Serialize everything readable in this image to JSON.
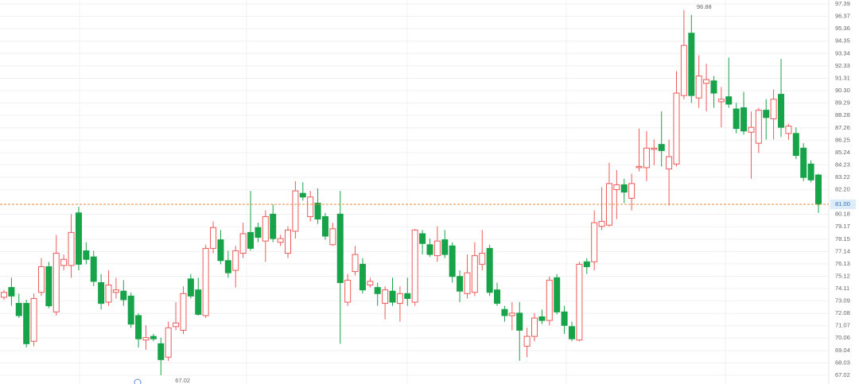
{
  "chart_data": {
    "type": "candlestick",
    "up_color": "#ee5a5a",
    "down_color": "#17a349",
    "grid": true,
    "ylim": [
      67.02,
      97.39
    ],
    "yticks": [
      97.39,
      96.37,
      95.36,
      94.35,
      93.34,
      92.33,
      91.31,
      {
        "value": 90.3,
        "label": "90.30"
      },
      89.29,
      88.28,
      87.26,
      86.25,
      85.24,
      84.23,
      83.22,
      {
        "value": 82.2,
        "label": "82.20"
      },
      80.18,
      79.17,
      78.15,
      77.14,
      76.13,
      75.12,
      74.11,
      73.09,
      72.08,
      71.07,
      70.06,
      69.04,
      68.03,
      67.02
    ],
    "last_price": {
      "value": 81,
      "label": "81.00"
    },
    "open": [
      73.4,
      74.2,
      72.9,
      72.9,
      69.8,
      73.8,
      75.9,
      72.2,
      76.0,
      76.0,
      80.3,
      77.2,
      76.7,
      74.6,
      73.0,
      73.8,
      73.9,
      73.5,
      71.9,
      69.9,
      70.2,
      69.6,
      68.5,
      71.0,
      70.7,
      74.9,
      74.0,
      71.9,
      77.4,
      78.1,
      76.4,
      75.6,
      77.0,
      78.7,
      79.1,
      78.0,
      80.2,
      77.9,
      77.0,
      78.8,
      81.9,
      80.0,
      81.1,
      80.0,
      77.7,
      80.2,
      73.0,
      75.5,
      76.1,
      74.4,
      74.2,
      72.9,
      73.9,
      72.9,
      73.7,
      73.0,
      78.6,
      77.7,
      76.8,
      78.1,
      77.6,
      75.1,
      73.7,
      73.8,
      76.1,
      77.4,
      74.0,
      72.4,
      71.9,
      72.1,
      69.4,
      70.2,
      71.8,
      71.5,
      75.0,
      72.2,
      71.0,
      69.9,
      76.3,
      76.3,
      79.2,
      79.3,
      82.2,
      82.6,
      81.5,
      84.0,
      84.0,
      85.5,
      85.9,
      83.9,
      84.3,
      89.9,
      95.0,
      89.7,
      90.9,
      91.1,
      89.4,
      89.8,
      88.8,
      88.9,
      86.9,
      86.0,
      88.7,
      88.0,
      90.0,
      86.8,
      86.8,
      85.6,
      84.3,
      83.4
    ],
    "high": [
      74.0,
      75.0,
      73.7,
      73.2,
      73.7,
      76.6,
      76.3,
      78.5,
      76.9,
      80.2,
      80.8,
      77.9,
      77.2,
      75.3,
      75.6,
      75.0,
      74.8,
      73.8,
      72.1,
      71.1,
      70.4,
      70.1,
      71.4,
      73.0,
      74.3,
      75.3,
      75.0,
      77.7,
      79.6,
      78.9,
      77.2,
      77.6,
      79.5,
      82.1,
      79.5,
      80.5,
      81.0,
      78.5,
      79.2,
      82.9,
      82.8,
      82.1,
      82.3,
      80.3,
      79.5,
      82.1,
      75.3,
      77.6,
      76.6,
      75.0,
      74.6,
      74.3,
      75.0,
      74.3,
      75.0,
      79.0,
      78.9,
      78.2,
      79.2,
      78.9,
      77.9,
      75.6,
      76.9,
      77.9,
      78.9,
      77.7,
      74.6,
      72.7,
      73.0,
      73.0,
      70.9,
      72.1,
      72.4,
      75.1,
      75.3,
      72.7,
      71.4,
      76.3,
      76.6,
      80.5,
      82.4,
      84.4,
      83.8,
      83.1,
      83.5,
      87.2,
      87.0,
      86.3,
      88.6,
      86.3,
      91.9,
      96.88,
      96.5,
      93.2,
      92.5,
      91.5,
      90.6,
      93.0,
      89.3,
      90.2,
      88.6,
      88.9,
      89.6,
      90.4,
      92.9,
      87.6,
      87.3,
      86.0,
      84.6,
      83.5
    ],
    "low": [
      73.2,
      72.7,
      71.7,
      69.3,
      69.4,
      73.5,
      72.5,
      71.9,
      75.6,
      75.0,
      75.6,
      76.1,
      74.3,
      72.4,
      72.7,
      73.3,
      72.7,
      70.9,
      69.3,
      69.1,
      69.8,
      67.02,
      68.2,
      70.7,
      70.4,
      73.3,
      71.9,
      71.7,
      77.0,
      76.1,
      75.0,
      74.2,
      76.6,
      77.2,
      77.9,
      76.3,
      77.9,
      77.6,
      76.6,
      78.2,
      81.3,
      79.6,
      79.4,
      78.1,
      77.6,
      69.6,
      72.7,
      75.2,
      73.7,
      74.2,
      72.7,
      71.6,
      72.7,
      71.4,
      72.7,
      72.7,
      76.9,
      76.7,
      76.3,
      76.6,
      74.6,
      73.0,
      73.3,
      73.5,
      75.6,
      73.5,
      72.7,
      71.4,
      70.7,
      68.2,
      68.5,
      69.8,
      71.2,
      71.1,
      72.0,
      70.4,
      69.8,
      69.8,
      75.3,
      75.6,
      78.9,
      79.2,
      79.8,
      81.1,
      80.5,
      83.7,
      82.9,
      84.2,
      84.1,
      80.9,
      84.1,
      89.6,
      89.3,
      88.9,
      88.6,
      88.9,
      87.3,
      88.9,
      86.8,
      86.7,
      83.1,
      85.2,
      86.3,
      86.3,
      86.5,
      86.3,
      84.7,
      82.9,
      82.8,
      80.3
    ],
    "close": [
      73.8,
      73.5,
      71.9,
      69.6,
      73.3,
      75.9,
      72.7,
      77.0,
      76.5,
      78.7,
      76.1,
      76.5,
      74.7,
      72.9,
      74.4,
      74.0,
      73.2,
      71.2,
      70.0,
      70.1,
      70.0,
      68.3,
      70.9,
      71.3,
      73.7,
      73.5,
      72.0,
      77.4,
      79.1,
      76.4,
      75.4,
      77.2,
      78.6,
      77.4,
      78.3,
      80.0,
      78.2,
      78.2,
      78.9,
      82.1,
      81.6,
      81.6,
      79.8,
      78.4,
      79.0,
      74.6,
      74.8,
      76.9,
      74.0,
      74.7,
      73.7,
      74.0,
      73.0,
      73.7,
      73.3,
      78.9,
      77.8,
      76.9,
      78.0,
      76.9,
      75.1,
      73.9,
      75.4,
      76.8,
      77.0,
      73.8,
      72.9,
      71.9,
      72.1,
      70.7,
      70.2,
      71.7,
      71.5,
      74.8,
      72.2,
      71.1,
      70.0,
      76.1,
      75.9,
      79.5,
      79.6,
      82.7,
      82.6,
      82.0,
      82.7,
      84.1,
      85.6,
      85.6,
      85.4,
      84.9,
      90.1,
      94.0,
      89.9,
      91.5,
      91.2,
      90.1,
      89.6,
      89.2,
      87.2,
      87.0,
      87.3,
      88.7,
      88.1,
      89.6,
      87.3,
      87.4,
      85.0,
      83.2,
      83.0,
      81.0
    ]
  }
}
